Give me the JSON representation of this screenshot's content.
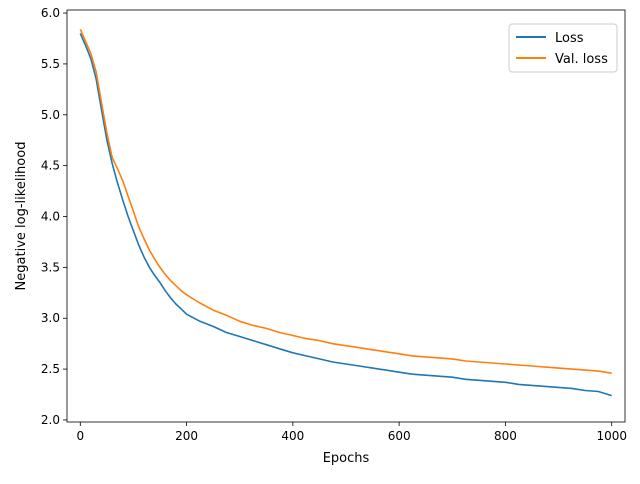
{
  "chart_data": {
    "type": "line",
    "xlabel": "Epochs",
    "ylabel": "Negative log-likelihood",
    "xlim": [
      -25,
      1025
    ],
    "ylim": [
      1.98,
      6.03
    ],
    "x_ticks": [
      0,
      200,
      400,
      600,
      800,
      1000
    ],
    "y_ticks": [
      2.0,
      2.5,
      3.0,
      3.5,
      4.0,
      4.5,
      5.0,
      5.5,
      6.0
    ],
    "x_tick_labels": [
      "0",
      "200",
      "400",
      "600",
      "800",
      "1000"
    ],
    "y_tick_labels": [
      "2.0",
      "2.5",
      "3.0",
      "3.5",
      "4.0",
      "4.5",
      "5.0",
      "5.5",
      "6.0"
    ],
    "grid": false,
    "legend_position": "top-right",
    "series": [
      {
        "name": "Loss",
        "color": "#1f77b4",
        "x": [
          0,
          10,
          20,
          30,
          40,
          50,
          60,
          70,
          80,
          90,
          100,
          110,
          120,
          130,
          140,
          150,
          160,
          170,
          180,
          190,
          200,
          225,
          250,
          275,
          300,
          325,
          350,
          375,
          400,
          425,
          450,
          475,
          500,
          525,
          550,
          575,
          600,
          625,
          650,
          675,
          700,
          725,
          750,
          775,
          800,
          825,
          850,
          875,
          900,
          925,
          950,
          975,
          1000
        ],
        "y": [
          5.8,
          5.68,
          5.55,
          5.35,
          5.05,
          4.75,
          4.52,
          4.33,
          4.16,
          4.0,
          3.86,
          3.72,
          3.6,
          3.5,
          3.42,
          3.35,
          3.27,
          3.2,
          3.14,
          3.09,
          3.04,
          2.97,
          2.92,
          2.86,
          2.82,
          2.78,
          2.74,
          2.7,
          2.66,
          2.63,
          2.6,
          2.57,
          2.55,
          2.53,
          2.51,
          2.49,
          2.47,
          2.45,
          2.44,
          2.43,
          2.42,
          2.4,
          2.39,
          2.38,
          2.37,
          2.35,
          2.34,
          2.33,
          2.32,
          2.31,
          2.29,
          2.28,
          2.24
        ]
      },
      {
        "name": "Val. loss",
        "color": "#ff7f0e",
        "x": [
          0,
          10,
          20,
          30,
          40,
          50,
          60,
          70,
          80,
          90,
          100,
          110,
          120,
          130,
          140,
          150,
          160,
          170,
          180,
          190,
          200,
          225,
          250,
          275,
          300,
          325,
          350,
          375,
          400,
          425,
          450,
          475,
          500,
          525,
          550,
          575,
          600,
          625,
          650,
          675,
          700,
          725,
          750,
          775,
          800,
          825,
          850,
          875,
          900,
          925,
          950,
          975,
          1000
        ],
        "y": [
          5.84,
          5.72,
          5.6,
          5.42,
          5.12,
          4.82,
          4.58,
          4.47,
          4.35,
          4.2,
          4.05,
          3.9,
          3.78,
          3.67,
          3.58,
          3.5,
          3.43,
          3.37,
          3.32,
          3.27,
          3.23,
          3.15,
          3.08,
          3.03,
          2.97,
          2.93,
          2.9,
          2.86,
          2.83,
          2.8,
          2.78,
          2.75,
          2.73,
          2.71,
          2.69,
          2.67,
          2.65,
          2.63,
          2.62,
          2.61,
          2.6,
          2.58,
          2.57,
          2.56,
          2.55,
          2.54,
          2.53,
          2.52,
          2.51,
          2.5,
          2.49,
          2.48,
          2.46
        ]
      }
    ]
  }
}
